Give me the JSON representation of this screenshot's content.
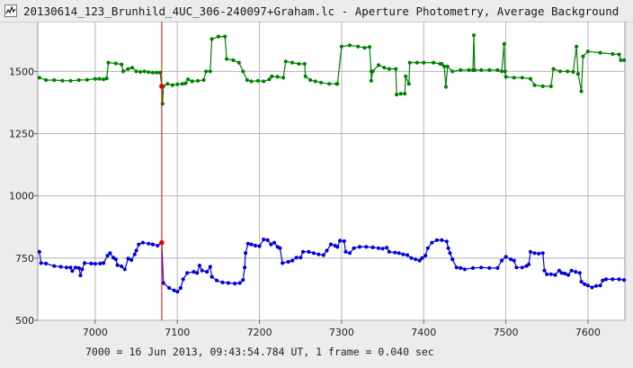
{
  "window": {
    "title": "20130614_123_Brunhild_4UC_306-240097+Graham.lc - Aperture Photometry, Average Background",
    "icon": "chart-icon"
  },
  "footer": {
    "text": "7000 = 16 Jun 2013, 09:43:54.784 UT, 1 frame = 0.040 sec"
  },
  "chart_data": {
    "type": "line",
    "title": "",
    "xlabel": "",
    "ylabel": "",
    "xlim": [
      6930,
      7645
    ],
    "ylim": [
      500,
      1700
    ],
    "xticks": [
      7000,
      7100,
      7200,
      7300,
      7400,
      7500,
      7600
    ],
    "yticks": [
      500,
      750,
      1000,
      1250,
      1500
    ],
    "grid": true,
    "legend": "none",
    "cursor_x": 7081,
    "series": [
      {
        "color": "#008000",
        "highlight": {
          "x": 7081,
          "y": 1440,
          "color": "#e00000"
        },
        "points": [
          [
            6932,
            1475
          ],
          [
            6940,
            1465
          ],
          [
            6950,
            1465
          ],
          [
            6960,
            1463
          ],
          [
            6970,
            1462
          ],
          [
            6980,
            1465
          ],
          [
            6990,
            1466
          ],
          [
            7000,
            1470
          ],
          [
            7005,
            1470
          ],
          [
            7010,
            1468
          ],
          [
            7014,
            1472
          ],
          [
            7016,
            1535
          ],
          [
            7025,
            1532
          ],
          [
            7032,
            1528
          ],
          [
            7034,
            1500
          ],
          [
            7040,
            1510
          ],
          [
            7045,
            1515
          ],
          [
            7050,
            1500
          ],
          [
            7055,
            1498
          ],
          [
            7060,
            1500
          ],
          [
            7065,
            1497
          ],
          [
            7070,
            1495
          ],
          [
            7075,
            1495
          ],
          [
            7079,
            1495
          ],
          [
            7081,
            1440
          ],
          [
            7082,
            1370
          ],
          [
            7083,
            1440
          ],
          [
            7088,
            1450
          ],
          [
            7094,
            1445
          ],
          [
            7100,
            1448
          ],
          [
            7106,
            1450
          ],
          [
            7110,
            1452
          ],
          [
            7113,
            1468
          ],
          [
            7118,
            1460
          ],
          [
            7125,
            1462
          ],
          [
            7132,
            1465
          ],
          [
            7135,
            1500
          ],
          [
            7140,
            1500
          ],
          [
            7142,
            1630
          ],
          [
            7150,
            1640
          ],
          [
            7158,
            1640
          ],
          [
            7160,
            1550
          ],
          [
            7168,
            1545
          ],
          [
            7175,
            1535
          ],
          [
            7180,
            1500
          ],
          [
            7185,
            1465
          ],
          [
            7190,
            1460
          ],
          [
            7198,
            1462
          ],
          [
            7205,
            1460
          ],
          [
            7212,
            1468
          ],
          [
            7215,
            1480
          ],
          [
            7222,
            1478
          ],
          [
            7229,
            1475
          ],
          [
            7232,
            1540
          ],
          [
            7240,
            1535
          ],
          [
            7248,
            1530
          ],
          [
            7255,
            1530
          ],
          [
            7256,
            1480
          ],
          [
            7262,
            1465
          ],
          [
            7268,
            1460
          ],
          [
            7275,
            1455
          ],
          [
            7285,
            1450
          ],
          [
            7294,
            1450
          ],
          [
            7295,
            1450
          ],
          [
            7300,
            1600
          ],
          [
            7310,
            1605
          ],
          [
            7320,
            1600
          ],
          [
            7328,
            1595
          ],
          [
            7334,
            1598
          ],
          [
            7336,
            1500
          ],
          [
            7336,
            1462
          ],
          [
            7338,
            1500
          ],
          [
            7345,
            1525
          ],
          [
            7352,
            1515
          ],
          [
            7358,
            1510
          ],
          [
            7366,
            1510
          ],
          [
            7367,
            1407
          ],
          [
            7372,
            1410
          ],
          [
            7377,
            1410
          ],
          [
            7378,
            1480
          ],
          [
            7382,
            1450
          ],
          [
            7383,
            1535
          ],
          [
            7392,
            1535
          ],
          [
            7400,
            1535
          ],
          [
            7412,
            1535
          ],
          [
            7420,
            1530
          ],
          [
            7422,
            1530
          ],
          [
            7425,
            1520
          ],
          [
            7427,
            1438
          ],
          [
            7429,
            1520
          ],
          [
            7435,
            1500
          ],
          [
            7445,
            1505
          ],
          [
            7455,
            1505
          ],
          [
            7460,
            1505
          ],
          [
            7461,
            1645
          ],
          [
            7462,
            1505
          ],
          [
            7470,
            1505
          ],
          [
            7480,
            1505
          ],
          [
            7490,
            1505
          ],
          [
            7495,
            1500
          ],
          [
            7498,
            1610
          ],
          [
            7499,
            1500
          ],
          [
            7500,
            1478
          ],
          [
            7510,
            1475
          ],
          [
            7520,
            1475
          ],
          [
            7530,
            1470
          ],
          [
            7535,
            1445
          ],
          [
            7545,
            1440
          ],
          [
            7555,
            1440
          ],
          [
            7558,
            1510
          ],
          [
            7566,
            1500
          ],
          [
            7575,
            1500
          ],
          [
            7582,
            1498
          ],
          [
            7586,
            1600
          ],
          [
            7588,
            1490
          ],
          [
            7592,
            1420
          ],
          [
            7594,
            1560
          ],
          [
            7600,
            1580
          ],
          [
            7615,
            1575
          ],
          [
            7630,
            1570
          ],
          [
            7638,
            1568
          ],
          [
            7640,
            1545
          ],
          [
            7644,
            1545
          ]
        ]
      },
      {
        "color": "#0000e0",
        "highlight": {
          "x": 7081,
          "y": 812,
          "color": "#e00000"
        },
        "points": [
          [
            6932,
            775
          ],
          [
            6934,
            730
          ],
          [
            6940,
            728
          ],
          [
            6950,
            718
          ],
          [
            6958,
            715
          ],
          [
            6965,
            712
          ],
          [
            6970,
            712
          ],
          [
            6972,
            698
          ],
          [
            6976,
            712
          ],
          [
            6980,
            710
          ],
          [
            6982,
            680
          ],
          [
            6984,
            705
          ],
          [
            6987,
            730
          ],
          [
            6995,
            728
          ],
          [
            7000,
            727
          ],
          [
            7006,
            728
          ],
          [
            7010,
            730
          ],
          [
            7015,
            760
          ],
          [
            7018,
            770
          ],
          [
            7022,
            752
          ],
          [
            7025,
            745
          ],
          [
            7027,
            722
          ],
          [
            7032,
            717
          ],
          [
            7036,
            705
          ],
          [
            7040,
            748
          ],
          [
            7044,
            742
          ],
          [
            7048,
            765
          ],
          [
            7050,
            780
          ],
          [
            7053,
            805
          ],
          [
            7058,
            812
          ],
          [
            7065,
            808
          ],
          [
            7070,
            805
          ],
          [
            7076,
            800
          ],
          [
            7081,
            812
          ],
          [
            7083,
            650
          ],
          [
            7090,
            630
          ],
          [
            7096,
            620
          ],
          [
            7100,
            615
          ],
          [
            7104,
            630
          ],
          [
            7107,
            665
          ],
          [
            7112,
            690
          ],
          [
            7120,
            695
          ],
          [
            7124,
            690
          ],
          [
            7127,
            720
          ],
          [
            7130,
            700
          ],
          [
            7136,
            695
          ],
          [
            7140,
            715
          ],
          [
            7142,
            675
          ],
          [
            7148,
            660
          ],
          [
            7155,
            652
          ],
          [
            7162,
            650
          ],
          [
            7170,
            648
          ],
          [
            7176,
            650
          ],
          [
            7180,
            662
          ],
          [
            7182,
            712
          ],
          [
            7183,
            770
          ],
          [
            7186,
            808
          ],
          [
            7190,
            805
          ],
          [
            7195,
            800
          ],
          [
            7200,
            798
          ],
          [
            7205,
            825
          ],
          [
            7210,
            822
          ],
          [
            7214,
            805
          ],
          [
            7218,
            812
          ],
          [
            7222,
            795
          ],
          [
            7225,
            790
          ],
          [
            7228,
            730
          ],
          [
            7235,
            735
          ],
          [
            7240,
            740
          ],
          [
            7245,
            752
          ],
          [
            7250,
            752
          ],
          [
            7253,
            775
          ],
          [
            7260,
            775
          ],
          [
            7266,
            770
          ],
          [
            7272,
            765
          ],
          [
            7278,
            762
          ],
          [
            7282,
            780
          ],
          [
            7287,
            805
          ],
          [
            7292,
            800
          ],
          [
            7295,
            795
          ],
          [
            7298,
            820
          ],
          [
            7303,
            818
          ],
          [
            7305,
            775
          ],
          [
            7310,
            770
          ],
          [
            7315,
            790
          ],
          [
            7322,
            795
          ],
          [
            7330,
            795
          ],
          [
            7338,
            793
          ],
          [
            7345,
            790
          ],
          [
            7350,
            788
          ],
          [
            7355,
            792
          ],
          [
            7358,
            775
          ],
          [
            7365,
            772
          ],
          [
            7370,
            770
          ],
          [
            7375,
            765
          ],
          [
            7380,
            762
          ],
          [
            7385,
            750
          ],
          [
            7390,
            745
          ],
          [
            7395,
            740
          ],
          [
            7398,
            750
          ],
          [
            7402,
            760
          ],
          [
            7405,
            790
          ],
          [
            7410,
            812
          ],
          [
            7416,
            822
          ],
          [
            7422,
            822
          ],
          [
            7428,
            817
          ],
          [
            7430,
            790
          ],
          [
            7432,
            770
          ],
          [
            7435,
            745
          ],
          [
            7440,
            712
          ],
          [
            7445,
            710
          ],
          [
            7450,
            705
          ],
          [
            7460,
            710
          ],
          [
            7470,
            712
          ],
          [
            7480,
            710
          ],
          [
            7490,
            710
          ],
          [
            7495,
            740
          ],
          [
            7500,
            755
          ],
          [
            7506,
            745
          ],
          [
            7510,
            740
          ],
          [
            7513,
            712
          ],
          [
            7520,
            712
          ],
          [
            7525,
            718
          ],
          [
            7528,
            725
          ],
          [
            7530,
            775
          ],
          [
            7535,
            770
          ],
          [
            7540,
            768
          ],
          [
            7545,
            770
          ],
          [
            7547,
            700
          ],
          [
            7550,
            685
          ],
          [
            7555,
            685
          ],
          [
            7560,
            682
          ],
          [
            7565,
            700
          ],
          [
            7568,
            690
          ],
          [
            7572,
            688
          ],
          [
            7576,
            682
          ],
          [
            7580,
            700
          ],
          [
            7585,
            695
          ],
          [
            7590,
            690
          ],
          [
            7592,
            655
          ],
          [
            7596,
            645
          ],
          [
            7600,
            640
          ],
          [
            7605,
            632
          ],
          [
            7610,
            638
          ],
          [
            7615,
            640
          ],
          [
            7618,
            660
          ],
          [
            7622,
            665
          ],
          [
            7630,
            665
          ],
          [
            7638,
            665
          ],
          [
            7644,
            662
          ]
        ]
      }
    ]
  }
}
